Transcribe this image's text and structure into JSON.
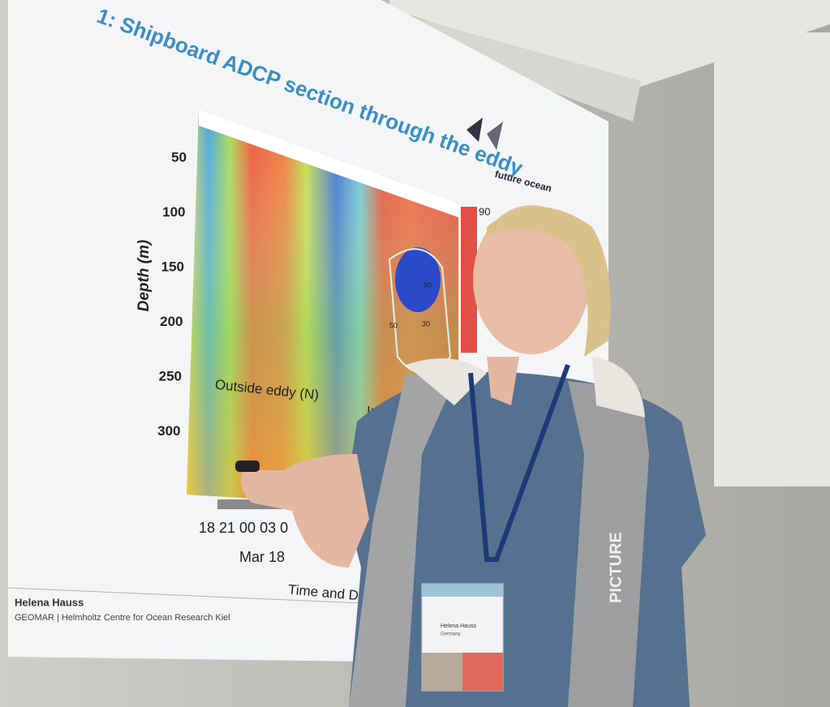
{
  "slide": {
    "title": "1: Shipboard ADCP section through the eddy",
    "logo": "future ocean",
    "y_axis_label": "Depth (m)",
    "y_ticks": [
      "50",
      "100",
      "150",
      "200",
      "250",
      "300"
    ],
    "annotations": [
      "Outside eddy (N)",
      "Ins"
    ],
    "colorbar_label": "90",
    "contour_labels": [
      "50",
      "30",
      "50"
    ],
    "x_ticks": "18 21 00 03 0",
    "x_date": "Mar 18",
    "x_label": "Time and D/N",
    "footer_name": "Helena Hauss",
    "footer_org": "GEOMAR | Helmholtz Centre for Ocean Research Kiel"
  },
  "badge": {
    "name": "Helena Hauss",
    "country": "Germany"
  },
  "vest_text": "PICTURE"
}
